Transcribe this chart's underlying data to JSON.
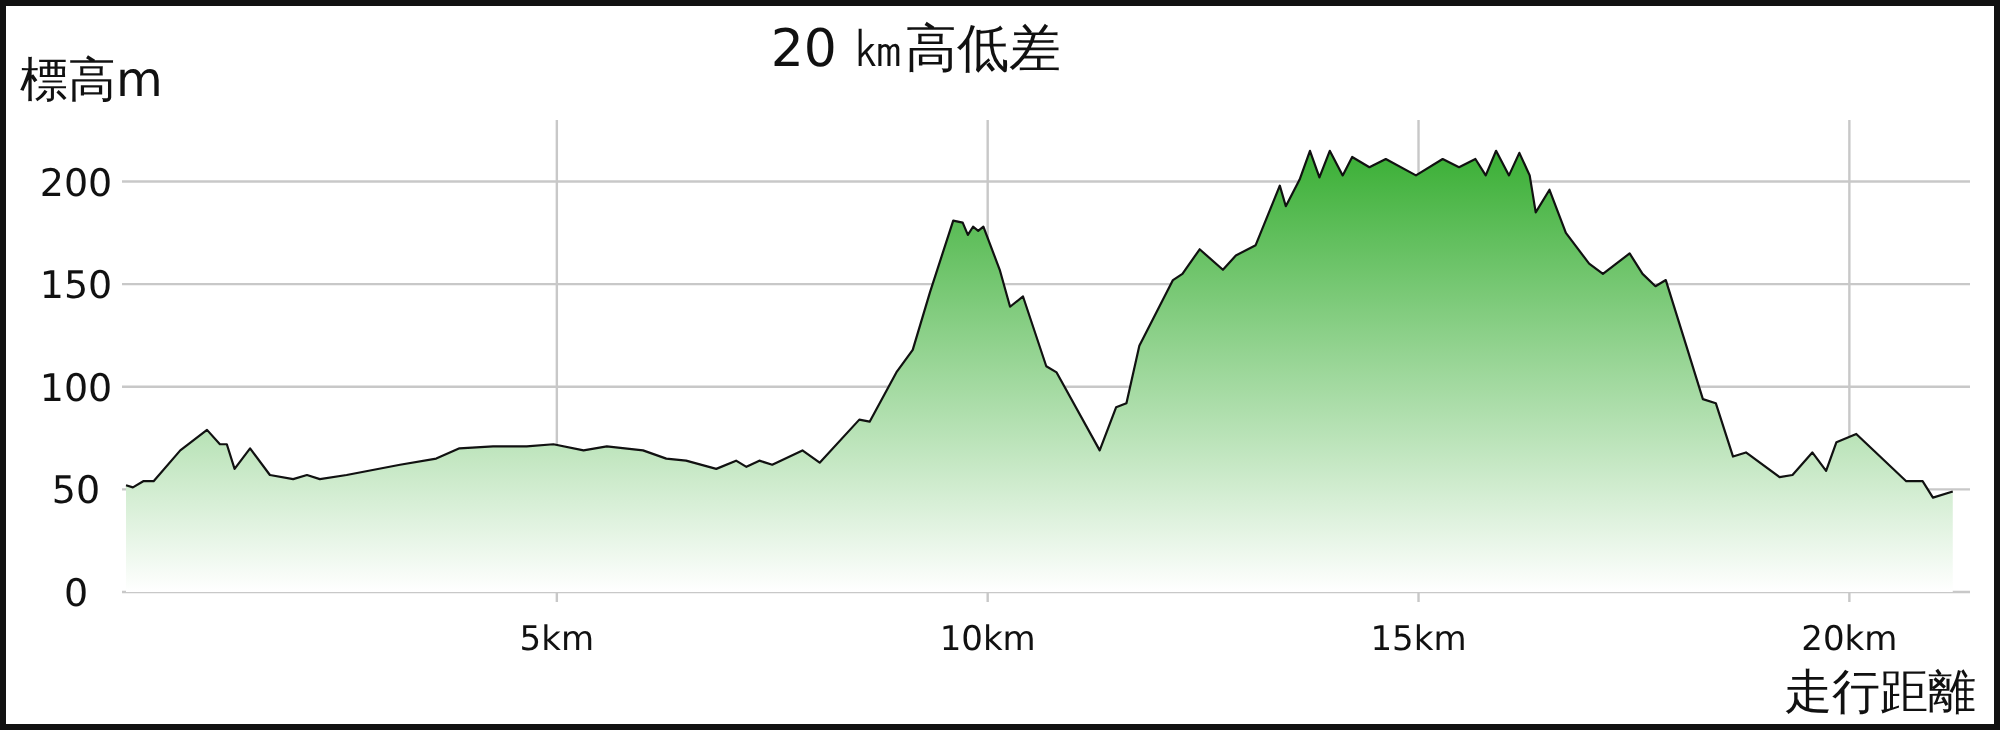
{
  "chart_data": {
    "type": "area",
    "title": "20 ㎞高低差",
    "ylabel": "標高m",
    "xlabel": "走行距離",
    "color": "#3aaf35",
    "grid": true,
    "marker": "none",
    "xlim": [
      0,
      21.4
    ],
    "ylim": [
      0,
      230
    ],
    "xticks": [
      {
        "value": 5,
        "label": "5km"
      },
      {
        "value": 10,
        "label": "10km"
      },
      {
        "value": 15,
        "label": "15km"
      },
      {
        "value": 20,
        "label": "20km"
      }
    ],
    "yticks": [
      0,
      50,
      100,
      150,
      200
    ],
    "x": [
      0,
      0.08,
      0.2,
      0.32,
      0.63,
      0.94,
      1.09,
      1.17,
      1.26,
      1.44,
      1.67,
      1.94,
      2.1,
      2.25,
      2.56,
      3.18,
      3.6,
      3.87,
      4.26,
      4.65,
      4.96,
      5.31,
      5.58,
      6.0,
      6.27,
      6.5,
      6.85,
      7.08,
      7.2,
      7.35,
      7.5,
      7.85,
      8.05,
      8.51,
      8.63,
      8.94,
      9.13,
      9.33,
      9.6,
      9.71,
      9.77,
      9.83,
      9.89,
      9.95,
      10.14,
      10.26,
      10.41,
      10.68,
      10.8,
      11.3,
      11.49,
      11.61,
      11.76,
      12.15,
      12.26,
      12.46,
      12.73,
      12.88,
      13.11,
      13.39,
      13.46,
      13.62,
      13.74,
      13.85,
      13.97,
      14.12,
      14.23,
      14.43,
      14.62,
      14.97,
      15.28,
      15.47,
      15.66,
      15.78,
      15.9,
      16.05,
      16.17,
      16.29,
      16.36,
      16.52,
      16.71,
      16.98,
      17.14,
      17.45,
      17.6,
      17.75,
      17.87,
      18.1,
      18.3,
      18.45,
      18.65,
      18.8,
      19.19,
      19.34,
      19.57,
      19.73,
      19.85,
      20.08,
      20.66,
      20.85,
      20.97,
      21.2
    ],
    "values": [
      52,
      51,
      54,
      54,
      69,
      79,
      72,
      72,
      60,
      70,
      57,
      55,
      57,
      55,
      57,
      62,
      65,
      70,
      71,
      71,
      72,
      69,
      71,
      69,
      65,
      64,
      60,
      64,
      61,
      64,
      62,
      69,
      63,
      84,
      83,
      107,
      118,
      146,
      181,
      180,
      174,
      178,
      176,
      178,
      157,
      139,
      144,
      110,
      107,
      69,
      90,
      92,
      120,
      152,
      155,
      167,
      157,
      164,
      169,
      198,
      188,
      201,
      215,
      202,
      215,
      203,
      212,
      207,
      211,
      203,
      211,
      207,
      211,
      203,
      215,
      203,
      214,
      203,
      185,
      196,
      175,
      160,
      155,
      165,
      155,
      149,
      152,
      121,
      94,
      92,
      66,
      68,
      56,
      57,
      68,
      59,
      73,
      77,
      54,
      54,
      46,
      49
    ]
  }
}
